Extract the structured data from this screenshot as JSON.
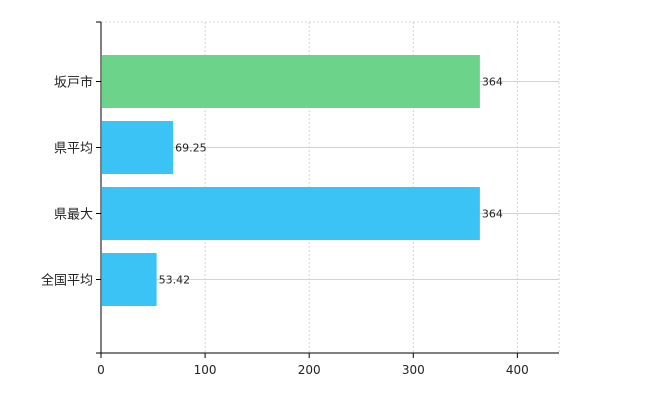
{
  "chart_data": {
    "type": "bar",
    "orientation": "horizontal",
    "categories": [
      "坂戸市",
      "県平均",
      "県最大",
      "全国平均"
    ],
    "values": [
      364,
      69.25,
      364,
      53.42
    ],
    "value_labels": [
      "364",
      "69.25",
      "364",
      "53.42"
    ],
    "bar_colors": [
      "#6cd38b",
      "#3cc3f5",
      "#3cc3f5",
      "#3cc3f5"
    ],
    "xlim": [
      0,
      440
    ],
    "x_ticks": [
      0,
      100,
      200,
      300,
      400
    ],
    "x_tick_labels": [
      "0",
      "100",
      "200",
      "300",
      "400"
    ],
    "grid": true,
    "title": "",
    "xlabel": "",
    "ylabel": ""
  }
}
